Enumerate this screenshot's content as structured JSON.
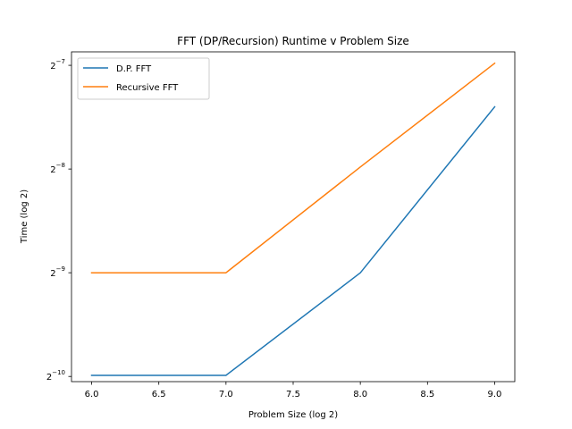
{
  "chart_data": {
    "type": "line",
    "title": "FFT (DP/Recursion) Runtime v Problem Size",
    "xlabel": "Problem Size (log 2)",
    "ylabel": "Time (log 2)",
    "xlim": [
      5.85,
      9.15
    ],
    "ylim": [
      -10.05,
      -6.87
    ],
    "y_scale": "log2",
    "xticks": [
      6.0,
      6.5,
      7.0,
      7.5,
      8.0,
      8.5,
      9.0
    ],
    "xtick_labels": [
      "6.0",
      "6.5",
      "7.0",
      "7.5",
      "8.0",
      "8.5",
      "9.0"
    ],
    "yticks": [
      -10,
      -9,
      -8,
      -7
    ],
    "ytick_labels": [
      {
        "base": "2",
        "exp": "−10"
      },
      {
        "base": "2",
        "exp": "−9"
      },
      {
        "base": "2",
        "exp": "−8"
      },
      {
        "base": "2",
        "exp": "−7"
      }
    ],
    "x": [
      6,
      7,
      8,
      9
    ],
    "series": [
      {
        "name": "D.P. FFT",
        "color": "#1f77b4",
        "values": [
          -9.99,
          -9.99,
          -9.0,
          -7.4
        ]
      },
      {
        "name": "Recursive FFT",
        "color": "#ff7f0e",
        "values": [
          -9.0,
          -9.0,
          -7.98,
          -6.98
        ]
      }
    ],
    "grid": false,
    "legend_position": "top-left"
  }
}
